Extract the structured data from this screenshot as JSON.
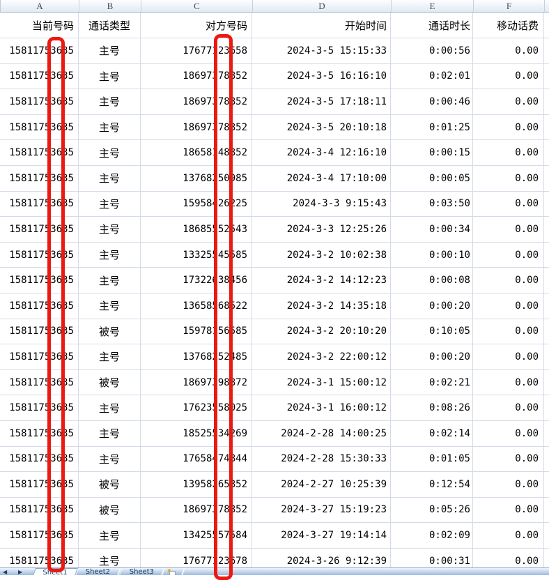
{
  "sheet": {
    "column_letters": [
      "A",
      "B",
      "C",
      "D",
      "E",
      "F"
    ],
    "header_row": {
      "a": "当前号码",
      "b": "通话类型",
      "c": "对方号码",
      "d": "开始时间",
      "e": "通话时长",
      "f": "移动话费"
    },
    "rows": [
      {
        "a": "15811753635",
        "b": "主号",
        "c": "17677123658",
        "d": "2024-3-5 15:15:33",
        "e": "0:00:56",
        "f": "0.00"
      },
      {
        "a": "15811753635",
        "b": "主号",
        "c": "18697378852",
        "d": "2024-3-5 16:16:10",
        "e": "0:02:01",
        "f": "0.00"
      },
      {
        "a": "15811753635",
        "b": "主号",
        "c": "18697378852",
        "d": "2024-3-5 17:18:11",
        "e": "0:00:46",
        "f": "0.00"
      },
      {
        "a": "15811753635",
        "b": "主号",
        "c": "18697378852",
        "d": "2024-3-5 20:10:18",
        "e": "0:01:25",
        "f": "0.00"
      },
      {
        "a": "15811753635",
        "b": "主号",
        "c": "18658148852",
        "d": "2024-3-4 12:16:10",
        "e": "0:00:15",
        "f": "0.00"
      },
      {
        "a": "15811753635",
        "b": "主号",
        "c": "13768250985",
        "d": "2024-3-4 17:10:00",
        "e": "0:00:05",
        "f": "0.00"
      },
      {
        "a": "15811753635",
        "b": "主号",
        "c": "15958426225",
        "d": "2024-3-3 9:15:43",
        "e": "0:03:50",
        "f": "0.00"
      },
      {
        "a": "15811753635",
        "b": "主号",
        "c": "18685552543",
        "d": "2024-3-3 12:25:26",
        "e": "0:00:34",
        "f": "0.00"
      },
      {
        "a": "15811753635",
        "b": "主号",
        "c": "13325545585",
        "d": "2024-3-2 10:02:38",
        "e": "0:00:10",
        "f": "0.00"
      },
      {
        "a": "15811753635",
        "b": "主号",
        "c": "17322638456",
        "d": "2024-3-2 14:12:23",
        "e": "0:00:08",
        "f": "0.00"
      },
      {
        "a": "15811753635",
        "b": "主号",
        "c": "13658568522",
        "d": "2024-3-2 14:35:18",
        "e": "0:00:20",
        "f": "0.00"
      },
      {
        "a": "15811753635",
        "b": "被号",
        "c": "15978156585",
        "d": "2024-3-2 20:10:20",
        "e": "0:10:05",
        "f": "0.00"
      },
      {
        "a": "15811753635",
        "b": "主号",
        "c": "13768252485",
        "d": "2024-3-2 22:00:12",
        "e": "0:00:20",
        "f": "0.00"
      },
      {
        "a": "15811753635",
        "b": "被号",
        "c": "18697398872",
        "d": "2024-3-1 15:00:12",
        "e": "0:02:21",
        "f": "0.00"
      },
      {
        "a": "15811753635",
        "b": "主号",
        "c": "17623558025",
        "d": "2024-3-1 16:00:12",
        "e": "0:08:26",
        "f": "0.00"
      },
      {
        "a": "15811753635",
        "b": "主号",
        "c": "18525534269",
        "d": "2024-2-28 14:00:25",
        "e": "0:02:14",
        "f": "0.00"
      },
      {
        "a": "15811753635",
        "b": "主号",
        "c": "17658474844",
        "d": "2024-2-28 15:30:33",
        "e": "0:01:05",
        "f": "0.00"
      },
      {
        "a": "15811753635",
        "b": "被号",
        "c": "13958265852",
        "d": "2024-2-27 10:25:39",
        "e": "0:12:54",
        "f": "0.00"
      },
      {
        "a": "15811753635",
        "b": "被号",
        "c": "18697378852",
        "d": "2024-3-27 15:19:23",
        "e": "0:05:26",
        "f": "0.00"
      },
      {
        "a": "15811753635",
        "b": "主号",
        "c": "13425557584",
        "d": "2024-3-27 19:14:14",
        "e": "0:02:09",
        "f": "0.00"
      },
      {
        "a": "15811753635",
        "b": "主号",
        "c": "17677123678",
        "d": "2024-3-26 9:12:39",
        "e": "0:00:31",
        "f": "0.00"
      }
    ]
  },
  "sheet_tabs": {
    "tabs": [
      "Sheet1",
      "Sheet2",
      "Sheet3"
    ],
    "active": "Sheet1",
    "nav_first_glyph": "◀",
    "nav_last_glyph": "▶",
    "insert_icon_glyph": "✱",
    "insert_icon_name": "insert-worksheet-icon"
  },
  "annotations": {
    "redaction_color": "#ed1810",
    "bars": [
      {
        "column": "A",
        "note": "hollow red bar covering one digit of每 current number"
      },
      {
        "column": "C",
        "note": "hollow red bar covering one digit of每 other-party number"
      }
    ]
  },
  "colors": {
    "gridline": "#d4dbe8",
    "column_header_border": "#9eb6ce",
    "tabbar_gradient_top": "#f0f5fb",
    "tabbar_gradient_bottom": "#9fbade",
    "tab_text": "#16365c"
  }
}
